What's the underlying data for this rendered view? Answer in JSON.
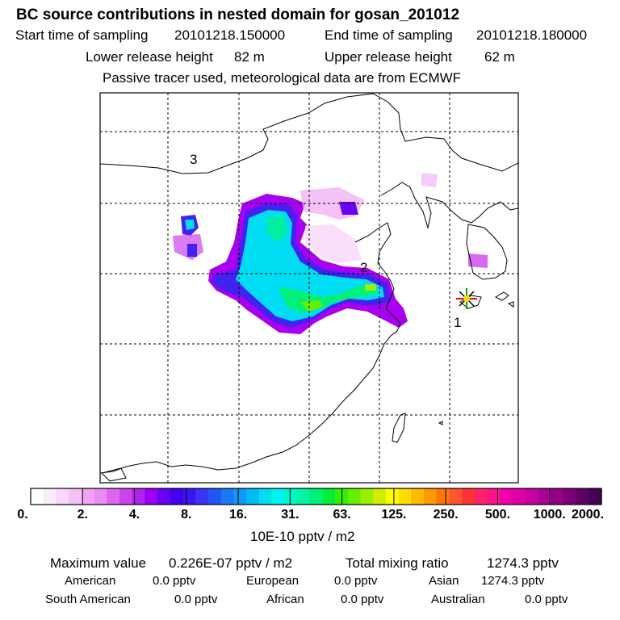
{
  "header": {
    "title": "BC  source contributions in nested domain for gosan_201012",
    "start_label": "Start time of sampling",
    "start_value": "20101218.150000",
    "end_label": "End time of sampling",
    "end_value": "20101218.180000",
    "lower_label": "Lower release height",
    "lower_value": "82 m",
    "upper_label": "Upper release height",
    "upper_value": "62 m",
    "tracer_note": "Passive tracer used, meteorological data are from ECMWF"
  },
  "map": {
    "markers": [
      {
        "id": "marker-1",
        "label": "1"
      },
      {
        "id": "marker-2",
        "label": "2"
      },
      {
        "id": "marker-3",
        "label": "3"
      }
    ],
    "receptor_symbol": "star-icon"
  },
  "colorbar": {
    "unit": "10E-10 pptv / m2",
    "labels": [
      "0.",
      "2.",
      "4.",
      "8.",
      "16.",
      "31.",
      "63.",
      "125.",
      "250.",
      "500.",
      "1000.",
      "2000."
    ],
    "colors": [
      "#ffffff",
      "#fcebfc",
      "#f9d7fb",
      "#f5c0f8",
      "#f0a6f5",
      "#ea8cf2",
      "#dd66ee",
      "#cc44ee",
      "#b31ff0",
      "#9a00f5",
      "#6a00f0",
      "#4400ee",
      "#3a14f2",
      "#3c33f5",
      "#2255f5",
      "#1a77f5",
      "#1199f5",
      "#00bbf5",
      "#00ddf2",
      "#00f5ee",
      "#00f5c8",
      "#00f5a0",
      "#00f078",
      "#00ee33",
      "#33f000",
      "#66f000",
      "#99f000",
      "#ccf000",
      "#ffff00",
      "#ffdd00",
      "#ffbb00",
      "#ff9900",
      "#ff7700",
      "#ff5533",
      "#ff3333",
      "#ff2266",
      "#ff1188",
      "#ee00aa",
      "#dd00a6",
      "#c600a0",
      "#ad0096",
      "#930088",
      "#7a0078",
      "#5e0066",
      "#440055"
    ]
  },
  "stats": {
    "max_label": "Maximum value",
    "max_value": "0.226E-07 pptv / m2",
    "total_label": "Total mixing ratio",
    "total_value": "1274.3 pptv",
    "regions": [
      {
        "name": "American",
        "value": "0.0 pptv"
      },
      {
        "name": "European",
        "value": "0.0 pptv"
      },
      {
        "name": "Asian",
        "value": "1274.3 pptv"
      },
      {
        "name": "South American",
        "value": "0.0 pptv"
      },
      {
        "name": "African",
        "value": "0.0 pptv"
      },
      {
        "name": "Australian",
        "value": "0.0 pptv"
      }
    ]
  }
}
